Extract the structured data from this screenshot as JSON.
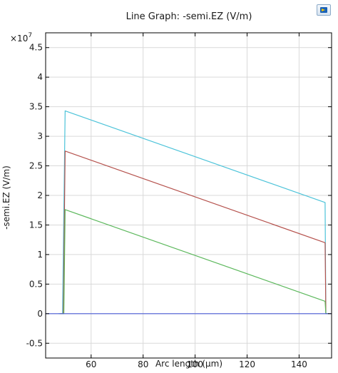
{
  "chart_data": {
    "type": "line",
    "title": "Line Graph: -semi.EZ (V/m)",
    "xlabel": "Arc length (µm)",
    "ylabel": "-semi.EZ (V/m)",
    "y_multiplier_label": "×10",
    "y_multiplier_exp": "7",
    "xlim": [
      42.5,
      152.5
    ],
    "ylim": [
      -0.75,
      4.75
    ],
    "x_ticks": [
      60,
      80,
      100,
      120,
      140
    ],
    "x_tick_labels": [
      "60",
      "80",
      "100",
      "120",
      "140"
    ],
    "y_ticks": [
      -0.5,
      0,
      0.5,
      1,
      1.5,
      2,
      2.5,
      3,
      3.5,
      4,
      4.5
    ],
    "y_tick_labels": [
      "-0.5",
      "0",
      "0.5",
      "1",
      "1.5",
      "2",
      "2.5",
      "3",
      "3.5",
      "4",
      "4.5"
    ],
    "grid": true,
    "series": [
      {
        "color": "#4cc3d9",
        "x": [
          47.5,
          49.0,
          50.0,
          150.0,
          150.3,
          151.5
        ],
        "y": [
          0,
          0,
          3.43,
          1.88,
          0,
          0
        ]
      },
      {
        "color": "#b5524d",
        "x": [
          48.0,
          49.3,
          50.0,
          150.0,
          150.3,
          151.5
        ],
        "y": [
          0,
          0,
          2.75,
          1.2,
          0,
          0
        ]
      },
      {
        "color": "#5cb85c",
        "x": [
          48.3,
          49.5,
          50.0,
          150.0,
          150.3,
          151.5
        ],
        "y": [
          0,
          0,
          1.76,
          0.21,
          0,
          0
        ]
      },
      {
        "color": "#4a5cd6",
        "x": [
          42.5,
          152.5
        ],
        "y": [
          0,
          0
        ]
      }
    ]
  },
  "logo_icon": "comsol-logo-icon"
}
